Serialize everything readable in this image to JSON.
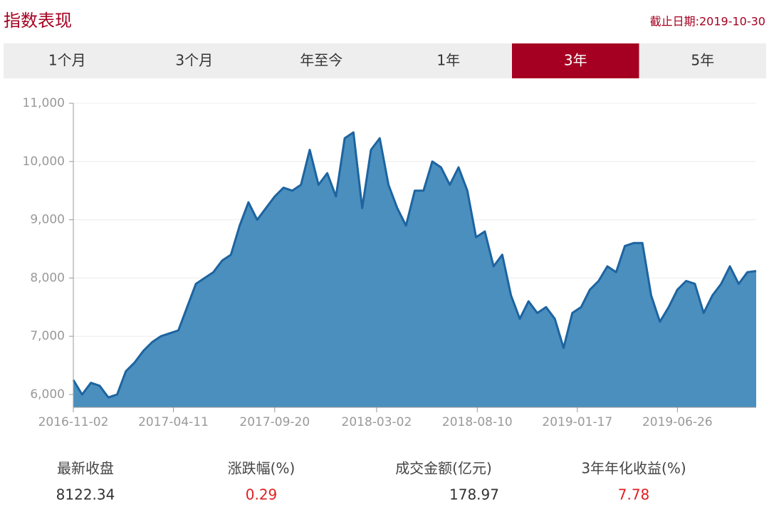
{
  "header": {
    "title": "指数表现",
    "date": "截止日期:2019-10-30"
  },
  "tabs": {
    "items": [
      "1个月",
      "3个月",
      "年至今",
      "1年",
      "3年",
      "5年"
    ],
    "active": 4
  },
  "chart_data": {
    "type": "area",
    "x": [
      "2016-11-02",
      "2016-11-16",
      "2016-11-30",
      "2016-12-14",
      "2016-12-28",
      "2017-01-11",
      "2017-01-25",
      "2017-02-08",
      "2017-02-22",
      "2017-03-08",
      "2017-03-22",
      "2017-04-05",
      "2017-04-19",
      "2017-05-03",
      "2017-05-17",
      "2017-05-31",
      "2017-06-14",
      "2017-06-28",
      "2017-07-12",
      "2017-07-26",
      "2017-08-09",
      "2017-08-23",
      "2017-09-06",
      "2017-09-20",
      "2017-10-04",
      "2017-10-18",
      "2017-11-01",
      "2017-11-15",
      "2017-11-29",
      "2017-12-13",
      "2017-12-27",
      "2018-01-10",
      "2018-01-24",
      "2018-02-07",
      "2018-02-21",
      "2018-03-07",
      "2018-03-21",
      "2018-04-04",
      "2018-04-18",
      "2018-05-02",
      "2018-05-16",
      "2018-05-30",
      "2018-06-13",
      "2018-06-27",
      "2018-07-11",
      "2018-07-25",
      "2018-08-08",
      "2018-08-22",
      "2018-09-05",
      "2018-09-19",
      "2018-10-03",
      "2018-10-17",
      "2018-10-31",
      "2018-11-14",
      "2018-11-28",
      "2018-12-12",
      "2018-12-26",
      "2019-01-09",
      "2019-01-23",
      "2019-02-06",
      "2019-02-20",
      "2019-03-06",
      "2019-03-20",
      "2019-04-03",
      "2019-04-17",
      "2019-05-01",
      "2019-05-15",
      "2019-05-29",
      "2019-06-12",
      "2019-06-26",
      "2019-07-10",
      "2019-07-24",
      "2019-08-07",
      "2019-08-21",
      "2019-09-04",
      "2019-09-18",
      "2019-10-02",
      "2019-10-16",
      "2019-10-30"
    ],
    "values": [
      6250,
      6000,
      6200,
      6150,
      5950,
      6000,
      6400,
      6550,
      6750,
      6900,
      7000,
      7050,
      7100,
      7500,
      7900,
      8000,
      8100,
      8300,
      8400,
      8900,
      9300,
      9000,
      9200,
      9400,
      9550,
      9500,
      9600,
      10200,
      9600,
      9800,
      9400,
      10400,
      10500,
      9200,
      10200,
      10400,
      9600,
      9200,
      8900,
      9500,
      9500,
      10000,
      9900,
      9600,
      9900,
      9500,
      8700,
      8800,
      8200,
      8400,
      7700,
      7300,
      7600,
      7400,
      7500,
      7300,
      6800,
      7400,
      7500,
      7800,
      7950,
      8200,
      8100,
      8550,
      8600,
      8600,
      7700,
      7250,
      7500,
      7800,
      7950,
      7900,
      7400,
      7700,
      7900,
      8200,
      7900,
      8100,
      8120
    ],
    "color": "#4a8fbe",
    "line_color": "#1d64a0",
    "xlim": [
      "2016-11-02",
      "2019-10-30"
    ],
    "xticks": [
      "2016-11-02",
      "2017-04-11",
      "2017-09-20",
      "2018-03-02",
      "2018-08-10",
      "2019-01-17",
      "2019-06-26"
    ],
    "ylim": [
      5780,
      11000
    ],
    "yticks": [
      {
        "value": 6000,
        "label": "6,000"
      },
      {
        "value": 7000,
        "label": "7,000"
      },
      {
        "value": 8000,
        "label": "8,000"
      },
      {
        "value": 9000,
        "label": "9,000"
      },
      {
        "value": 10000,
        "label": "10,000"
      },
      {
        "value": 11000,
        "label": "11,000"
      }
    ],
    "grid": true
  },
  "stats": [
    {
      "label": "最新收盘",
      "value": 8122.34
    },
    {
      "label": "涨跌幅(%)",
      "value": 0.29
    },
    {
      "label": "成交金额(亿元)",
      "value": 178.97
    },
    {
      "label": "3年年化收益(%)",
      "value": 7.78
    }
  ]
}
